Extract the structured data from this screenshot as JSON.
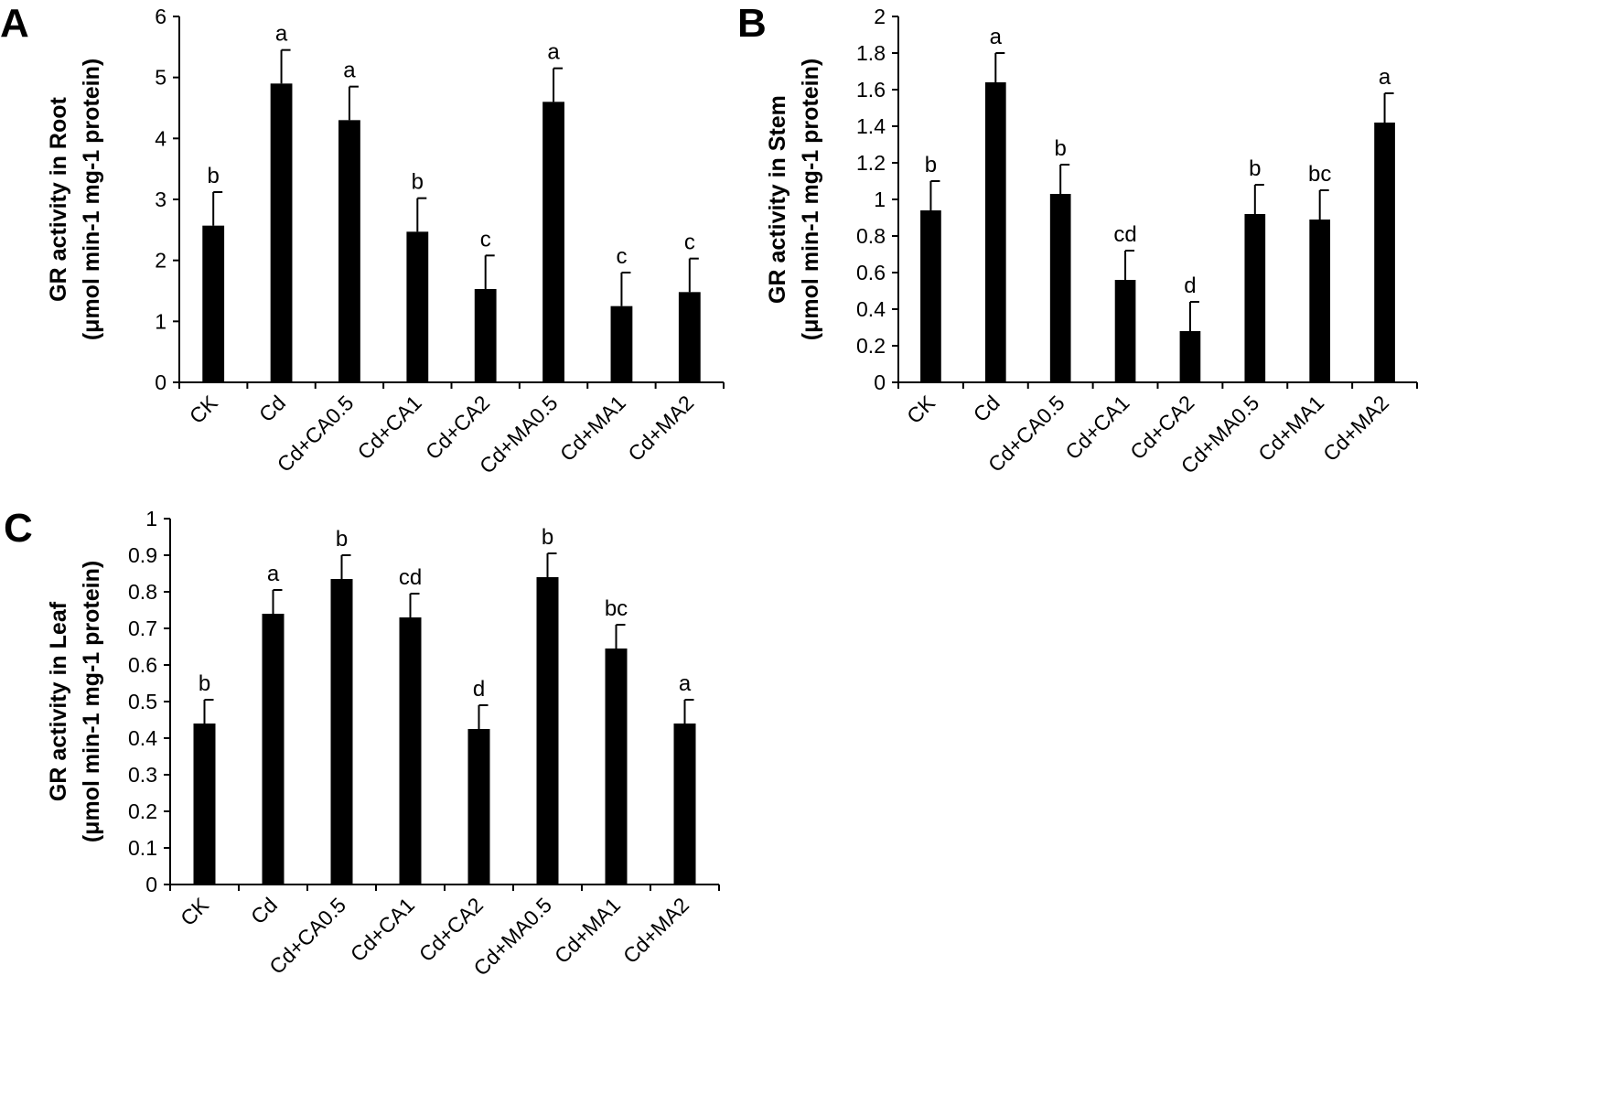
{
  "colors": {
    "bar": "#000000",
    "axis": "#000000",
    "background": "#ffffff"
  },
  "chart_data": [
    {
      "id": "A",
      "type": "bar",
      "panel_label": "A",
      "ylabel_line1": "GR activity in Root",
      "ylabel_line2": "(μmol min-1 mg-1 protein)",
      "ylim": [
        0,
        6
      ],
      "yticks": [
        0,
        1,
        2,
        3,
        4,
        5,
        6
      ],
      "ytick_labels": [
        "0",
        "1",
        "2",
        "3",
        "4",
        "5",
        "6"
      ],
      "categories": [
        "CK",
        "Cd",
        "Cd+CA0.5",
        "Cd+CA1",
        "Cd+CA2",
        "Cd+MA0.5",
        "Cd+MA1",
        "Cd+MA2"
      ],
      "values": [
        2.57,
        4.9,
        4.3,
        2.47,
        1.53,
        4.6,
        1.25,
        1.48
      ],
      "errors": [
        0.55,
        0.55,
        0.55,
        0.55,
        0.55,
        0.55,
        0.55,
        0.55
      ],
      "letters": [
        "b",
        "a",
        "a",
        "b",
        "c",
        "a",
        "c",
        "c"
      ],
      "grid": false
    },
    {
      "id": "B",
      "type": "bar",
      "panel_label": "B",
      "ylabel_line1": "GR activity in Stem",
      "ylabel_line2": "(μmol min-1 mg-1 protein)",
      "ylim": [
        0,
        2
      ],
      "yticks": [
        0,
        0.2,
        0.4,
        0.6,
        0.8,
        1,
        1.2,
        1.4,
        1.6,
        1.8,
        2
      ],
      "ytick_labels": [
        "0",
        "0.2",
        "0.4",
        "0.6",
        "0.8",
        "1",
        "1.2",
        "1.4",
        "1.6",
        "1.8",
        "2"
      ],
      "categories": [
        "CK",
        "Cd",
        "Cd+CA0.5",
        "Cd+CA1",
        "Cd+CA2",
        "Cd+MA0.5",
        "Cd+MA1",
        "Cd+MA2"
      ],
      "values": [
        0.94,
        1.64,
        1.03,
        0.56,
        0.28,
        0.92,
        0.89,
        1.42
      ],
      "errors": [
        0.16,
        0.16,
        0.16,
        0.16,
        0.16,
        0.16,
        0.16,
        0.16
      ],
      "letters": [
        "b",
        "a",
        "b",
        "cd",
        "d",
        "b",
        "bc",
        "a"
      ],
      "grid": false
    },
    {
      "id": "C",
      "type": "bar",
      "panel_label": "C",
      "ylabel_line1": "GR activity in Leaf",
      "ylabel_line2": "(μmol min-1 mg-1 protein)",
      "ylim": [
        0,
        1
      ],
      "yticks": [
        0,
        0.1,
        0.2,
        0.3,
        0.4,
        0.5,
        0.6,
        0.7,
        0.8,
        0.9,
        1
      ],
      "ytick_labels": [
        "0",
        "0.1",
        "0.2",
        "0.3",
        "0.4",
        "0.5",
        "0.6",
        "0.7",
        "0.8",
        "0.9",
        "1"
      ],
      "categories": [
        "CK",
        "Cd",
        "Cd+CA0.5",
        "Cd+CA1",
        "Cd+CA2",
        "Cd+MA0.5",
        "Cd+MA1",
        "Cd+MA2"
      ],
      "values": [
        0.44,
        0.74,
        0.835,
        0.73,
        0.425,
        0.84,
        0.645,
        0.44
      ],
      "errors": [
        0.065,
        0.065,
        0.065,
        0.065,
        0.065,
        0.065,
        0.065,
        0.065
      ],
      "letters": [
        "b",
        "a",
        "b",
        "cd",
        "d",
        "b",
        "bc",
        "a"
      ],
      "grid": false
    }
  ]
}
